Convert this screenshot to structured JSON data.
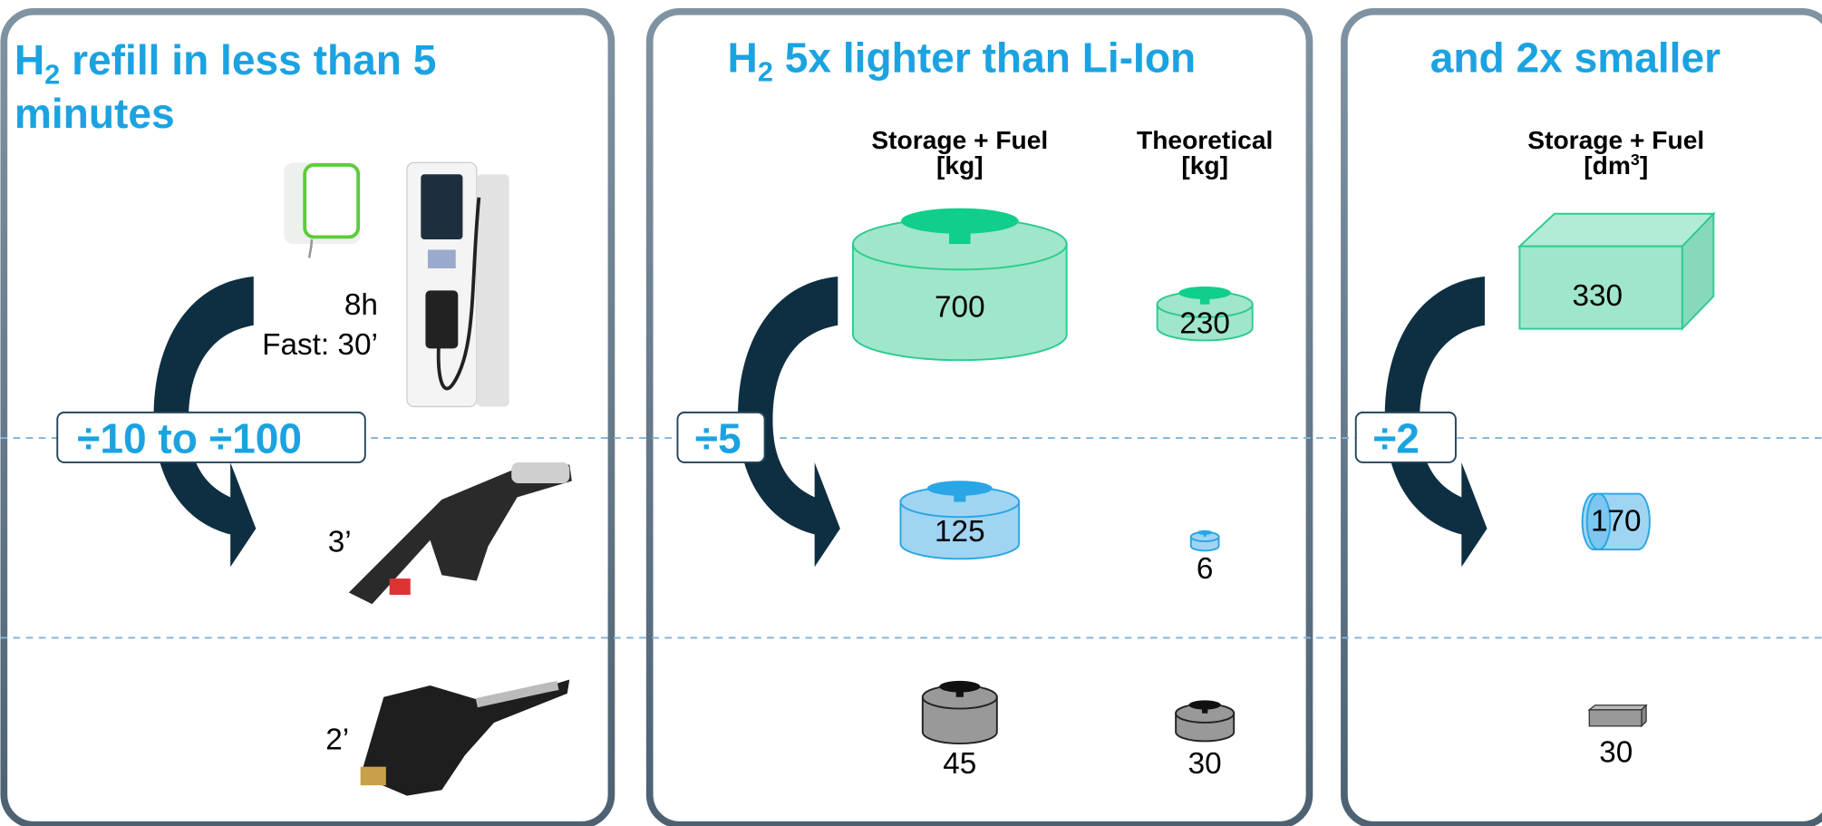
{
  "refill": {
    "title_h": "H",
    "title_sub": "2",
    "title_line1": " refill in less than 5",
    "title_line2": "minutes",
    "ratio": "÷10 to ÷100",
    "battery_time": "8h",
    "battery_fast": "Fast: 30’",
    "h2_time": "3’",
    "fuel_time": "2’"
  },
  "weight": {
    "title_h": "H",
    "title_sub": "2",
    "title": " 5x lighter than Li-Ion",
    "ratio": "÷5",
    "columns": [
      {
        "header": "Storage + Fuel",
        "unit": "[kg]",
        "values": [
          700,
          125,
          45
        ]
      },
      {
        "header": "Theoretical",
        "unit": "[kg]",
        "values": [
          230,
          6,
          30
        ]
      }
    ]
  },
  "volume": {
    "title": "and 2x smaller",
    "ratio": "÷2",
    "header": "Storage + Fuel",
    "unit_prefix": "[dm",
    "unit_sup": "3",
    "unit_suffix": "]",
    "values": [
      330,
      170,
      30
    ]
  }
}
